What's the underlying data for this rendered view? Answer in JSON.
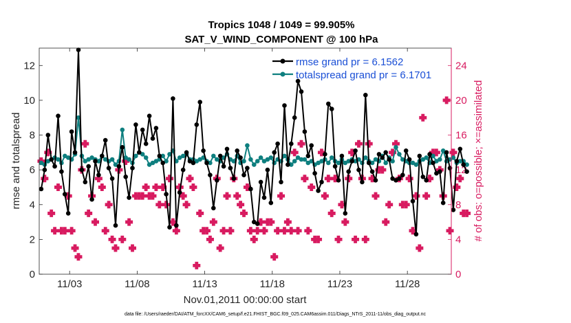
{
  "chart_data": {
    "type": "line",
    "title": "Tropics 1048 / 1049 = 99.905%",
    "subtitle": "SAT_V_WIND_COMPONENT @ 100 hPa",
    "xlabel": "Nov.01,2011 00:00:00 start",
    "ylabel": "rmse and totalspread",
    "ylabel_right": "# of obs: o=possible; ×=assimilated",
    "xlim": [
      0.75,
      31.25
    ],
    "ylim": [
      0,
      13
    ],
    "ylim_right": [
      0,
      26
    ],
    "x_ticks": [
      3,
      8,
      13,
      18,
      23,
      28
    ],
    "x_tick_labels": [
      "11/03",
      "11/08",
      "11/13",
      "11/18",
      "11/23",
      "11/28"
    ],
    "y_ticks": [
      0,
      2,
      4,
      6,
      8,
      10,
      12
    ],
    "y_tick_labels": [
      "0",
      "2",
      "4",
      "6",
      "8",
      "10",
      "12"
    ],
    "y_ticks_right": [
      0,
      4,
      8,
      12,
      16,
      20,
      24
    ],
    "y_tick_labels_right": [
      "0",
      "4",
      "8",
      "12",
      "16",
      "20",
      "24"
    ],
    "legend_position": "top-right",
    "series": [
      {
        "name": "rmse grand pr = 6.1562",
        "axis": "left",
        "color": "#000000",
        "x_start": 0.9,
        "x_step": 0.25,
        "values": [
          4.9,
          6.0,
          8.0,
          6.6,
          6.2,
          9.1,
          5.9,
          4.6,
          3.5,
          8.2,
          7.0,
          12.9,
          6.0,
          5.3,
          6.2,
          4.3,
          6.5,
          5.7,
          6.8,
          7.7,
          6.1,
          5.5,
          2.8,
          6.2,
          7.3,
          5.6,
          4.4,
          6.1,
          8.6,
          7.0,
          8.3,
          7.5,
          9.1,
          7.8,
          8.4,
          6.8,
          6.4,
          4.6,
          2.7,
          10.1,
          2.8,
          4.7,
          6.0,
          7.0,
          6.5,
          6.4,
          8.6,
          9.9,
          7.1,
          6.4,
          5.7,
          3.8,
          5.4,
          6.8,
          6.2,
          7.2,
          6.1,
          5.5,
          7.1,
          6.7,
          5.7,
          6.1,
          4.9,
          3.0,
          2.9,
          5.3,
          4.4,
          6.0,
          4.1,
          7.0,
          7.5,
          5.3,
          9.7,
          6.3,
          7.5,
          9.0,
          11.1,
          10.5,
          8.2,
          6.8,
          7.4,
          5.8,
          4.8,
          5.3,
          6.9,
          9.8,
          9.5,
          6.2,
          5.4,
          6.8,
          3.5,
          5.9,
          6.5,
          7.1,
          6.0,
          5.3,
          10.3,
          6.4,
          5.9,
          5.4,
          6.9,
          6.7,
          7.0,
          6.6,
          5.5,
          5.4,
          5.5,
          5.7,
          7.1,
          6.6,
          4.2,
          2.3,
          6.8,
          5.6,
          5.4,
          6.9,
          6.4,
          5.8,
          5.9,
          4.1,
          7.0,
          6.1,
          3.7,
          6.5,
          7.2,
          6.3,
          5.9
        ]
      },
      {
        "name": "totalspread grand pr = 6.1701",
        "axis": "left",
        "color": "#0e7f7f",
        "x_start": 0.9,
        "x_step": 0.25,
        "values": [
          6.4,
          6.3,
          6.5,
          6.6,
          6.7,
          6.6,
          6.4,
          6.8,
          6.7,
          6.6,
          6.9,
          9.0,
          6.8,
          6.5,
          6.6,
          6.7,
          6.6,
          6.5,
          6.8,
          6.6,
          6.5,
          6.6,
          6.3,
          6.5,
          8.3,
          6.7,
          6.6,
          6.4,
          6.8,
          7.0,
          6.9,
          6.7,
          6.3,
          6.4,
          6.5,
          6.6,
          6.8,
          6.5,
          6.9,
          7.1,
          6.5,
          6.7,
          6.8,
          6.9,
          6.6,
          6.6,
          6.5,
          6.6,
          6.7,
          6.5,
          6.4,
          6.8,
          6.6,
          6.5,
          6.7,
          6.9,
          6.6,
          6.5,
          6.8,
          6.4,
          6.5,
          7.4,
          6.6,
          6.3,
          6.5,
          6.7,
          6.5,
          6.6,
          6.7,
          6.4,
          6.6,
          6.5,
          6.8,
          6.6,
          6.3,
          6.5,
          6.7,
          6.6,
          6.6,
          6.4,
          6.5,
          6.3,
          6.4,
          6.5,
          6.6,
          6.4,
          6.7,
          6.5,
          6.4,
          6.6,
          6.4,
          6.5,
          6.6,
          6.5,
          6.6,
          6.4,
          6.7,
          6.5,
          6.4,
          6.6,
          6.5,
          6.8,
          6.4,
          6.7,
          6.5,
          7.3,
          6.9,
          6.6,
          6.5,
          6.4,
          6.4,
          6.3,
          6.5,
          6.6,
          6.7,
          6.4,
          6.8,
          6.5,
          6.6,
          7.1,
          6.5,
          6.6,
          6.7,
          6.4,
          6.5,
          6.5,
          6.3
        ]
      },
      {
        "name": "# of obs possible",
        "axis": "right",
        "color": "#d81b60",
        "marker": "o",
        "x_start": 0.9,
        "x_step": 0.25,
        "values": [
          13,
          11,
          14,
          7,
          5,
          10,
          5,
          5,
          9,
          5,
          3,
          2,
          12,
          15,
          7,
          9,
          6,
          11,
          10,
          5,
          8,
          4,
          3,
          12,
          4,
          13,
          6,
          3,
          9,
          9,
          9,
          10,
          9,
          9,
          10,
          8,
          10,
          8,
          11,
          6,
          5,
          10,
          9,
          8,
          11,
          10,
          1,
          7,
          5,
          5,
          4,
          6,
          11,
          3,
          5,
          9,
          5,
          11,
          9,
          8,
          7,
          10,
          5,
          4,
          5,
          6,
          5,
          6,
          6,
          2,
          5,
          9,
          5,
          6,
          5,
          14,
          5,
          15,
          11,
          5,
          10,
          4,
          4,
          14,
          9,
          11,
          7,
          11,
          4,
          8,
          6,
          11,
          14,
          4,
          15,
          11,
          4,
          15,
          11,
          9,
          12,
          12,
          6,
          8,
          14,
          15,
          11,
          8,
          8,
          11,
          5,
          9,
          3,
          18,
          9,
          11,
          14,
          14,
          12,
          9,
          20,
          5,
          14,
          10,
          11,
          7,
          7
        ]
      }
    ],
    "footnote": "data file: /Users/raeder/DAI/ATM_forcXX/CAM6_setup/f.e21.FHIST_BGC.f09_025.CAM6assim.011/Diags_NTrS_2011-11/obs_diag_output.nc"
  }
}
